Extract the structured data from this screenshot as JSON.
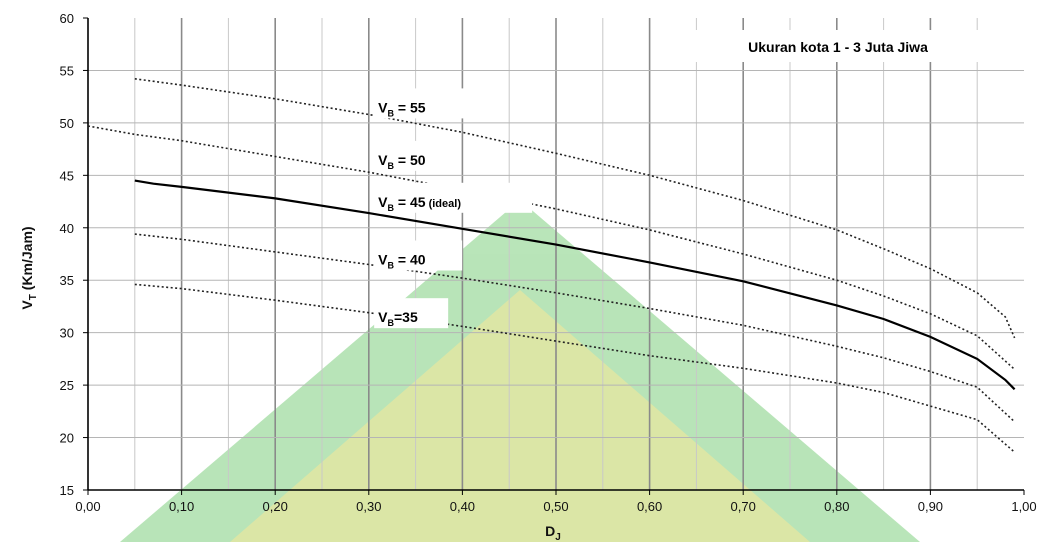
{
  "chart_data": {
    "type": "line",
    "title": "Ukuran kota 1 - 3 Juta Jiwa",
    "xlabel": "D",
    "xlabel_sub": "J",
    "ylabel": "V",
    "ylabel_sub": "T",
    "ylabel_suffix": " (Km/Jam)",
    "xlim": [
      0.0,
      1.0
    ],
    "ylim": [
      15,
      60
    ],
    "x_ticks": [
      "0,00",
      "0,10",
      "0,20",
      "0,30",
      "0,40",
      "0,50",
      "0,60",
      "0,70",
      "0,80",
      "0,90",
      "1,00"
    ],
    "y_ticks": [
      "15",
      "20",
      "25",
      "30",
      "35",
      "40",
      "45",
      "50",
      "55",
      "60"
    ],
    "grid": true,
    "series": [
      {
        "name": "55",
        "label": {
          "main": "V",
          "sub": "B",
          "rest": " = 55"
        },
        "style": "dotted",
        "color": "#222222",
        "x": [
          0.05,
          0.1,
          0.2,
          0.3,
          0.4,
          0.5,
          0.6,
          0.7,
          0.8,
          0.85,
          0.9,
          0.95,
          0.98,
          0.99
        ],
        "y": [
          54.2,
          53.6,
          52.3,
          50.8,
          49.1,
          47.1,
          45.0,
          42.6,
          39.8,
          38.0,
          36.1,
          33.8,
          31.5,
          29.5
        ]
      },
      {
        "name": "50",
        "label": {
          "main": "V",
          "sub": "B",
          "rest": " = 50"
        },
        "style": "dotted",
        "color": "#222222",
        "x": [
          0.0,
          0.05,
          0.1,
          0.2,
          0.3,
          0.4,
          0.5,
          0.6,
          0.7,
          0.8,
          0.85,
          0.9,
          0.95,
          0.99
        ],
        "y": [
          49.7,
          48.9,
          48.3,
          46.8,
          45.3,
          43.6,
          41.8,
          39.8,
          37.5,
          35.0,
          33.5,
          31.8,
          29.7,
          26.5
        ]
      },
      {
        "name": "45 (ideal)",
        "label": {
          "main": "V",
          "sub": "B",
          "rest": " = 45",
          "extra": " (ideal)"
        },
        "style": "solid",
        "color": "#000000",
        "x": [
          0.05,
          0.07,
          0.1,
          0.2,
          0.3,
          0.4,
          0.5,
          0.6,
          0.7,
          0.8,
          0.85,
          0.9,
          0.95,
          0.98,
          0.99
        ],
        "y": [
          44.5,
          44.2,
          43.9,
          42.8,
          41.4,
          39.9,
          38.4,
          36.7,
          34.9,
          32.6,
          31.3,
          29.6,
          27.5,
          25.5,
          24.6
        ]
      },
      {
        "name": "40",
        "label": {
          "main": "V",
          "sub": "B",
          "rest": " = 40"
        },
        "style": "dotted",
        "color": "#222222",
        "x": [
          0.05,
          0.1,
          0.2,
          0.3,
          0.4,
          0.5,
          0.6,
          0.7,
          0.8,
          0.85,
          0.9,
          0.95,
          0.99
        ],
        "y": [
          39.4,
          38.9,
          37.7,
          36.5,
          35.2,
          33.8,
          32.3,
          30.7,
          28.7,
          27.6,
          26.3,
          24.8,
          21.5
        ]
      },
      {
        "name": "35",
        "label": {
          "main": "V",
          "sub": "B",
          "rest": "=35"
        },
        "style": "dotted",
        "color": "#222222",
        "x": [
          0.05,
          0.1,
          0.2,
          0.3,
          0.4,
          0.5,
          0.6,
          0.7,
          0.8,
          0.85,
          0.9,
          0.95,
          0.99
        ],
        "y": [
          34.6,
          34.2,
          33.1,
          31.9,
          30.6,
          29.2,
          27.8,
          26.6,
          25.2,
          24.3,
          23.0,
          21.7,
          18.6
        ]
      }
    ]
  }
}
